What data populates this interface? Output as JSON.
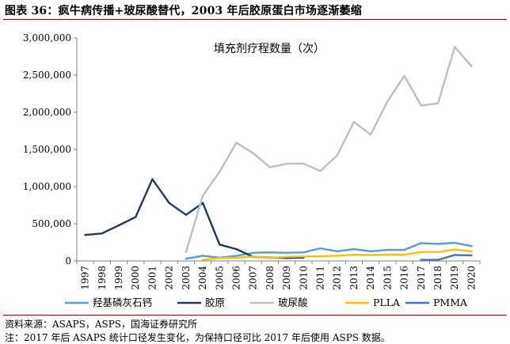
{
  "header": {
    "title": "图表 36：疯牛病传播+玻尿酸替代，2003 年后胶原蛋白市场逐渐萎缩"
  },
  "footer": {
    "source": "资料来源：ASAPS，ASPS，国海证券研究所",
    "note": "注：2017 年后 ASAPS 统计口径发生变化，为保持口径可比 2017 年后使用 ASPS 数据。"
  },
  "chart_data": {
    "type": "line",
    "title": "填充剂疗程数量（次）",
    "xlabel": "",
    "ylabel": "",
    "ylim": [
      0,
      3000000
    ],
    "yticks": [
      0,
      500000,
      1000000,
      1500000,
      2000000,
      2500000,
      3000000
    ],
    "ytick_labels": [
      "0",
      "500,000",
      "1,000,000",
      "1,500,000",
      "2,000,000",
      "2,500,000",
      "3,000,000"
    ],
    "categories": [
      "1997",
      "1998",
      "1999",
      "2000",
      "2001",
      "2002",
      "2003",
      "2004",
      "2005",
      "2006",
      "2007",
      "2008",
      "2009",
      "2010",
      "2011",
      "2012",
      "2013",
      "2014",
      "2015",
      "2016",
      "2017",
      "2018",
      "2019",
      "2020"
    ],
    "legend_position": "bottom",
    "grid": false,
    "series": [
      {
        "name": "羟基磷灰石钙",
        "color": "#5b9bd5",
        "values": [
          null,
          null,
          null,
          null,
          null,
          null,
          30000,
          70000,
          45000,
          70000,
          110000,
          115000,
          110000,
          115000,
          170000,
          130000,
          160000,
          130000,
          150000,
          150000,
          240000,
          230000,
          245000,
          200000
        ]
      },
      {
        "name": "胶原",
        "color": "#1f3864",
        "values": [
          350000,
          370000,
          480000,
          590000,
          1100000,
          780000,
          620000,
          780000,
          220000,
          160000,
          55000,
          45000,
          40000,
          45000,
          null,
          null,
          null,
          null,
          null,
          null,
          null,
          null,
          null,
          null
        ]
      },
      {
        "name": "玻尿酸",
        "color": "#bfbfbf",
        "values": [
          null,
          null,
          null,
          null,
          null,
          null,
          120000,
          880000,
          1200000,
          1590000,
          1450000,
          1260000,
          1310000,
          1310000,
          1210000,
          1420000,
          1870000,
          1700000,
          2150000,
          2490000,
          2090000,
          2120000,
          2880000,
          2620000
        ]
      },
      {
        "name": "PLLA",
        "color": "#ffc000",
        "values": [
          null,
          null,
          null,
          null,
          null,
          null,
          null,
          15000,
          40000,
          45000,
          60000,
          40000,
          55000,
          60000,
          65000,
          70000,
          85000,
          80000,
          85000,
          85000,
          120000,
          120000,
          155000,
          130000
        ]
      },
      {
        "name": "PMMA",
        "color": "#4472c4",
        "values": [
          null,
          null,
          null,
          null,
          null,
          null,
          null,
          null,
          null,
          null,
          null,
          null,
          null,
          null,
          null,
          null,
          null,
          null,
          null,
          null,
          15000,
          15000,
          80000,
          75000
        ]
      }
    ]
  }
}
